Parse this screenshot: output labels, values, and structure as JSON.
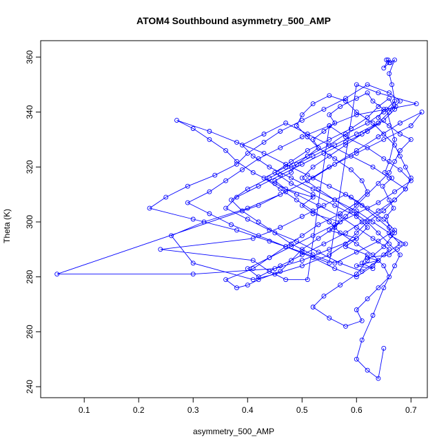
{
  "chart_data": {
    "type": "line",
    "title": "ATOM4 Southbound asymmetry_500_AMP",
    "xlabel": "asymmetry_500_AMP",
    "ylabel": "Theta (K)",
    "xlim": [
      0.02,
      0.73
    ],
    "ylim": [
      236,
      366
    ],
    "x_ticks": [
      0.1,
      0.2,
      0.3,
      0.4,
      0.5,
      0.6,
      0.7
    ],
    "y_ticks": [
      240,
      260,
      280,
      300,
      320,
      340,
      360
    ],
    "x_tick_labels": [
      "0.1",
      "0.2",
      "0.3",
      "0.4",
      "0.5",
      "0.6",
      "0.7"
    ],
    "y_tick_labels": [
      "240",
      "260",
      "280",
      "300",
      "320",
      "340",
      "360"
    ],
    "series_color": "#0000ff",
    "grid": false,
    "series": [
      {
        "marker": "open-circle",
        "x": [
          0.655,
          0.66,
          0.65,
          0.658,
          0.662,
          0.67,
          0.66,
          0.665,
          0.672,
          0.655,
          0.67,
          0.66,
          0.652,
          0.665,
          0.648,
          0.66,
          0.668,
          0.655,
          0.66,
          0.663,
          0.69,
          0.675,
          0.66,
          0.62,
          0.64,
          0.6,
          0.63,
          0.61,
          0.62,
          0.58,
          0.6,
          0.55,
          0.57,
          0.52,
          0.5,
          0.52,
          0.47,
          0.45,
          0.48,
          0.49,
          0.51,
          0.53,
          0.52,
          0.54,
          0.56,
          0.55,
          0.57,
          0.6,
          0.62,
          0.63,
          0.65,
          0.64,
          0.66,
          0.68,
          0.7,
          0.68,
          0.67,
          0.66,
          0.64,
          0.62,
          0.6,
          0.58,
          0.56,
          0.53,
          0.5,
          0.48,
          0.46,
          0.42,
          0.4,
          0.38,
          0.36,
          0.41,
          0.44,
          0.47,
          0.5,
          0.53,
          0.57,
          0.6,
          0.62,
          0.61,
          0.59,
          0.56,
          0.53,
          0.51,
          0.49,
          0.5,
          0.52,
          0.55,
          0.58,
          0.6,
          0.63,
          0.65,
          0.67,
          0.68,
          0.69,
          0.7,
          0.69,
          0.67,
          0.65,
          0.62,
          0.6,
          0.58,
          0.55,
          0.5,
          0.45,
          0.41,
          0.3,
          0.26,
          0.32,
          0.4,
          0.46,
          0.51,
          0.55,
          0.6,
          0.65,
          0.7,
          0.72,
          0.68,
          0.64,
          0.6,
          0.56,
          0.52,
          0.47,
          0.42,
          0.05,
          0.3,
          0.45,
          0.5,
          0.55,
          0.6,
          0.62,
          0.6,
          0.56,
          0.52,
          0.48,
          0.45,
          0.48,
          0.51,
          0.55,
          0.59,
          0.62,
          0.64,
          0.66,
          0.67,
          0.65,
          0.62,
          0.58,
          0.54,
          0.5,
          0.46,
          0.42,
          0.38,
          0.36,
          0.4,
          0.44,
          0.49,
          0.53,
          0.57,
          0.61,
          0.64,
          0.66,
          0.63,
          0.6,
          0.57,
          0.53,
          0.49,
          0.45,
          0.41,
          0.38,
          0.36,
          0.33,
          0.3,
          0.27,
          0.33,
          0.38,
          0.43,
          0.47,
          0.51,
          0.55,
          0.59,
          0.62,
          0.65,
          0.67,
          0.64,
          0.6,
          0.56,
          0.52,
          0.48,
          0.45,
          0.42,
          0.39,
          0.37,
          0.4,
          0.44,
          0.48,
          0.52,
          0.56,
          0.6,
          0.64,
          0.66,
          0.68,
          0.66,
          0.62,
          0.58,
          0.54,
          0.5,
          0.46,
          0.43,
          0.4,
          0.38,
          0.34,
          0.29,
          0.25,
          0.22,
          0.3,
          0.38,
          0.44,
          0.5,
          0.55,
          0.6,
          0.64,
          0.71,
          0.6,
          0.55,
          0.5,
          0.46,
          0.42,
          0.39,
          0.36,
          0.33,
          0.29,
          0.33,
          0.37,
          0.42,
          0.47,
          0.52,
          0.56,
          0.6,
          0.63,
          0.65,
          0.68,
          0.66,
          0.63,
          0.6,
          0.56,
          0.52,
          0.48,
          0.44,
          0.41,
          0.39,
          0.43,
          0.47,
          0.51,
          0.55,
          0.59,
          0.63,
          0.66,
          0.69,
          0.67,
          0.64,
          0.61,
          0.58,
          0.54,
          0.5,
          0.46,
          0.42,
          0.4,
          0.44,
          0.48,
          0.52,
          0.56,
          0.6,
          0.64,
          0.67,
          0.7,
          0.68,
          0.65,
          0.62,
          0.58,
          0.55,
          0.51,
          0.47,
          0.44,
          0.41,
          0.24,
          0.41,
          0.46,
          0.5,
          0.54,
          0.58,
          0.61,
          0.64,
          0.67,
          0.65,
          0.62,
          0.6,
          0.57,
          0.54,
          0.52,
          0.55,
          0.58,
          0.61,
          0.6,
          0.62,
          0.64,
          0.66,
          0.65,
          0.63,
          0.6,
          0.57,
          0.55,
          0.52,
          0.49,
          0.46,
          0.43,
          0.47,
          0.51,
          0.55,
          0.58,
          0.62,
          0.65,
          0.67,
          0.66,
          0.64,
          0.61,
          0.58,
          0.55,
          0.52,
          0.5,
          0.53,
          0.56,
          0.59,
          0.62,
          0.64,
          0.66,
          0.68,
          0.67,
          0.65,
          0.63,
          0.61,
          0.6,
          0.62,
          0.64,
          0.65
        ],
        "y": [
          359,
          358,
          356,
          359,
          358,
          359,
          354,
          350,
          342,
          341,
          330,
          322,
          318,
          316,
          313,
          308,
          305,
          302,
          298,
          295,
          292,
          290,
          288,
          287,
          286,
          284,
          283,
          285,
          288,
          291,
          294,
          297,
          300,
          303,
          306,
          309,
          312,
          315,
          318,
          321,
          324,
          327,
          330,
          333,
          336,
          339,
          342,
          345,
          347,
          344,
          341,
          338,
          335,
          332,
          330,
          326,
          322,
          318,
          314,
          310,
          306,
          302,
          298,
          294,
          290,
          286,
          282,
          279,
          277,
          276,
          279,
          283,
          287,
          291,
          295,
          299,
          303,
          307,
          311,
          315,
          319,
          323,
          327,
          331,
          335,
          339,
          343,
          346,
          344,
          340,
          336,
          332,
          328,
          324,
          320,
          316,
          312,
          308,
          304,
          300,
          296,
          292,
          288,
          284,
          281,
          279,
          285,
          295,
          300,
          305,
          310,
          315,
          320,
          325,
          330,
          335,
          340,
          336,
          331,
          326,
          321,
          316,
          311,
          306,
          281,
          281,
          283,
          286,
          290,
          294,
          298,
          302,
          306,
          310,
          314,
          318,
          322,
          326,
          330,
          334,
          338,
          342,
          345,
          341,
          337,
          333,
          329,
          325,
          321,
          317,
          313,
          309,
          305,
          301,
          297,
          293,
          289,
          285,
          282,
          286,
          290,
          294,
          298,
          302,
          306,
          310,
          314,
          318,
          322,
          326,
          330,
          334,
          337,
          333,
          329,
          325,
          321,
          317,
          313,
          309,
          305,
          301,
          297,
          293,
          289,
          285,
          288,
          292,
          296,
          300,
          304,
          308,
          312,
          316,
          320,
          324,
          328,
          332,
          336,
          340,
          344,
          347,
          350,
          345,
          341,
          337,
          333,
          329,
          325,
          321,
          317,
          313,
          309,
          305,
          301,
          297,
          293,
          289,
          285,
          350,
          347,
          343,
          339,
          335,
          331,
          327,
          323,
          319,
          315,
          311,
          307,
          303,
          299,
          295,
          291,
          287,
          283,
          280,
          284,
          288,
          292,
          296,
          300,
          304,
          308,
          312,
          316,
          320,
          324,
          328,
          332,
          336,
          332,
          328,
          324,
          320,
          316,
          312,
          308,
          304,
          300,
          296,
          292,
          288,
          284,
          280,
          283,
          287,
          291,
          295,
          299,
          303,
          307,
          311,
          315,
          319,
          323,
          327,
          331,
          335,
          279,
          279,
          282,
          286,
          290,
          294,
          298,
          302,
          306,
          310,
          306,
          301,
          296,
          291,
          286,
          281,
          277,
          273,
          269,
          265,
          262,
          264,
          268,
          272,
          276,
          280,
          284,
          288,
          292,
          296,
          300,
          304,
          308,
          312,
          316,
          320,
          324,
          328,
          332,
          336,
          340,
          344,
          340,
          336,
          332,
          328,
          324,
          320,
          316,
          312,
          308,
          304,
          300,
          296,
          292,
          288,
          284,
          276,
          266,
          257,
          250,
          246,
          243,
          254
        ]
      }
    ]
  }
}
